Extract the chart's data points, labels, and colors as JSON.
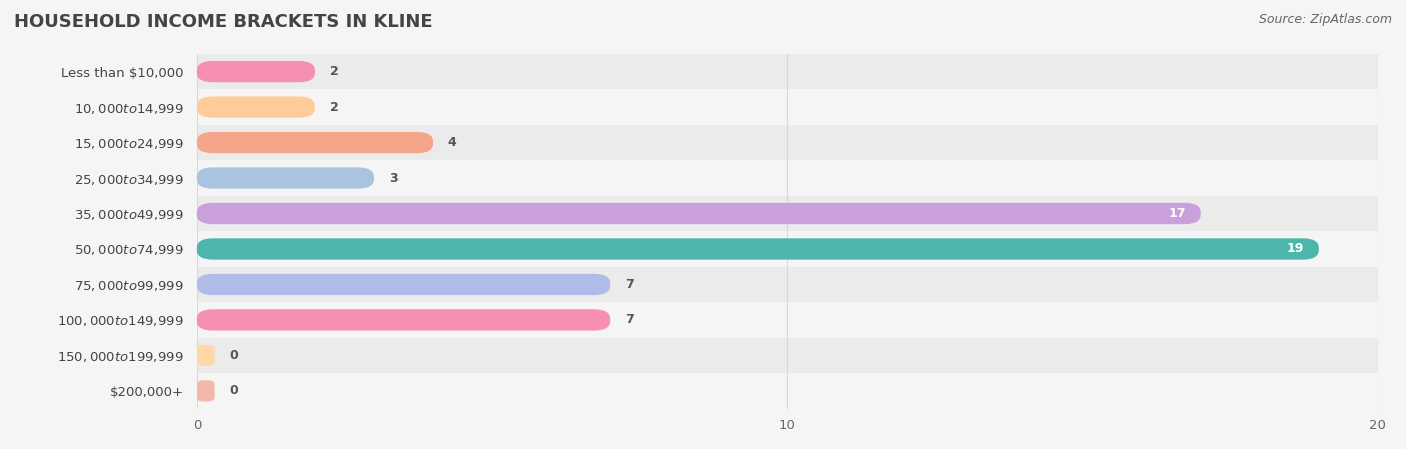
{
  "title": "HOUSEHOLD INCOME BRACKETS IN KLINE",
  "source": "Source: ZipAtlas.com",
  "categories": [
    "Less than $10,000",
    "$10,000 to $14,999",
    "$15,000 to $24,999",
    "$25,000 to $34,999",
    "$35,000 to $49,999",
    "$50,000 to $74,999",
    "$75,000 to $99,999",
    "$100,000 to $149,999",
    "$150,000 to $199,999",
    "$200,000+"
  ],
  "values": [
    2,
    2,
    4,
    3,
    17,
    19,
    7,
    7,
    0,
    0
  ],
  "bar_colors": [
    "#f48fb1",
    "#ffcc99",
    "#f4a58a",
    "#aac4e0",
    "#c9a0dc",
    "#4db6ac",
    "#b0bce8",
    "#f78fb3",
    "#ffd8a8",
    "#f4b8aa"
  ],
  "xlim": [
    0,
    20
  ],
  "xticks": [
    0,
    10,
    20
  ],
  "bar_height": 0.6,
  "background_color": "#f5f5f5",
  "row_colors": [
    "#ebebeb",
    "#f5f5f5"
  ],
  "title_fontsize": 13,
  "label_fontsize": 9.5,
  "value_fontsize": 9,
  "source_fontsize": 9,
  "title_color": "#444444",
  "label_color": "#444444",
  "value_color_inside": "#ffffff",
  "value_color_outside": "#555555",
  "source_color": "#666666",
  "grid_color": "#d8d8d8"
}
